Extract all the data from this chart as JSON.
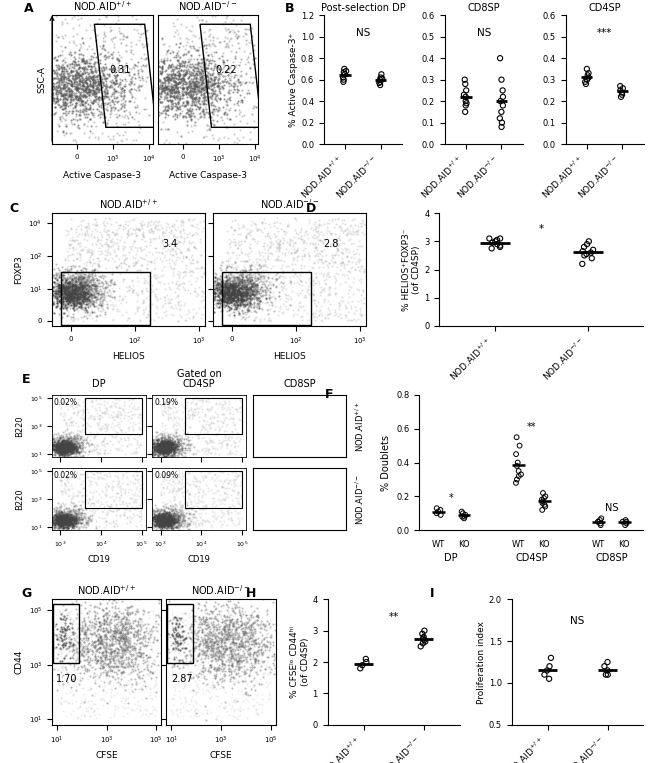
{
  "B_data": {
    "title_DP": "Post-selection DP",
    "title_CD8SP": "CD8SP",
    "title_CD4SP": "CD4SP",
    "ylabel": "% Active Caspase-3⁺",
    "sig_DP": "NS",
    "sig_CD8SP": "NS",
    "sig_CD4SP": "***",
    "ylim_DP": [
      0,
      1.2
    ],
    "yticks_DP": [
      0,
      0.2,
      0.4,
      0.6,
      0.8,
      1.0,
      1.2
    ],
    "ylim_CD8SP": [
      0,
      0.6
    ],
    "yticks_CD8SP": [
      0,
      0.1,
      0.2,
      0.3,
      0.4,
      0.5,
      0.6
    ],
    "ylim_CD4SP": [
      0,
      0.6
    ],
    "yticks_CD4SP": [
      0,
      0.1,
      0.2,
      0.3,
      0.4,
      0.5,
      0.6
    ],
    "DP_wt": [
      0.65,
      0.68,
      0.62,
      0.7,
      0.6,
      0.58,
      0.67
    ],
    "DP_ko": [
      0.6,
      0.55,
      0.62,
      0.58,
      0.65,
      0.57,
      0.61
    ],
    "DP_wt_mean": 0.643,
    "DP_ko_mean": 0.597,
    "CD8SP_wt": [
      0.2,
      0.23,
      0.25,
      0.18,
      0.22,
      0.28,
      0.3,
      0.19,
      0.15
    ],
    "CD8SP_ko": [
      0.2,
      0.1,
      0.08,
      0.12,
      0.3,
      0.4,
      0.25,
      0.22,
      0.15,
      0.18
    ],
    "CD8SP_wt_mean": 0.22,
    "CD8SP_ko_mean": 0.2,
    "CD4SP_wt": [
      0.3,
      0.32,
      0.28,
      0.35,
      0.33,
      0.31,
      0.29
    ],
    "CD4SP_ko": [
      0.22,
      0.25,
      0.24,
      0.27,
      0.23,
      0.26
    ],
    "CD4SP_wt_mean": 0.311,
    "CD4SP_ko_mean": 0.245
  },
  "D_data": {
    "ylabel": "% HELIOS⁺FOXP3⁻\n(of CD4SP)",
    "sig": "*",
    "ylim": [
      0,
      4
    ],
    "yticks": [
      0,
      1,
      2,
      3,
      4
    ],
    "wt": [
      2.8,
      3.0,
      3.1,
      2.9,
      3.05,
      2.75,
      2.85,
      3.1,
      2.95
    ],
    "ko": [
      2.9,
      2.6,
      2.5,
      2.4,
      2.7,
      2.8,
      3.0,
      2.2,
      2.55,
      2.65
    ],
    "wt_mean": 2.95,
    "ko_mean": 2.63
  },
  "F_data": {
    "ylabel": "% Doublets",
    "sig_DP": "*",
    "sig_CD4SP": "**",
    "sig_CD8SP": "NS",
    "ylim": [
      0,
      0.8
    ],
    "yticks": [
      0,
      0.2,
      0.4,
      0.6,
      0.8
    ],
    "DP_wt": [
      0.1,
      0.12,
      0.13,
      0.09,
      0.11
    ],
    "DP_ko": [
      0.08,
      0.09,
      0.07,
      0.1,
      0.08,
      0.11
    ],
    "DP_wt_mean": 0.11,
    "DP_ko_mean": 0.088,
    "CD4SP_wt": [
      0.3,
      0.35,
      0.32,
      0.28,
      0.4,
      0.38,
      0.5,
      0.55,
      0.45,
      0.33
    ],
    "CD4SP_ko": [
      0.15,
      0.18,
      0.2,
      0.12,
      0.17,
      0.22,
      0.14,
      0.19,
      0.16
    ],
    "CD4SP_wt_mean": 0.386,
    "CD4SP_ko_mean": 0.17,
    "CD8SP_wt": [
      0.05,
      0.04,
      0.06,
      0.03,
      0.05,
      0.07
    ],
    "CD8SP_ko": [
      0.04,
      0.05,
      0.06,
      0.03,
      0.05
    ],
    "CD8SP_wt_mean": 0.05,
    "CD8SP_ko_mean": 0.046
  },
  "H_data": {
    "ylabel": "% CFSEᴵᵒ CD44ʰⁱ\n(of CD4SP)",
    "sig": "**",
    "ylim": [
      0,
      4
    ],
    "yticks": [
      0,
      1,
      2,
      3,
      4
    ],
    "wt": [
      2.0,
      1.9,
      2.1,
      1.8
    ],
    "ko": [
      2.5,
      2.7,
      2.8,
      2.6,
      2.9,
      3.0,
      2.75,
      2.65
    ],
    "wt_mean": 1.95,
    "ko_mean": 2.74
  },
  "I_data": {
    "ylabel": "Proliferation index",
    "sig": "NS",
    "ylim": [
      0.5,
      2.0
    ],
    "yticks": [
      0.5,
      1.0,
      1.5,
      2.0
    ],
    "wt": [
      1.1,
      1.2,
      1.15,
      1.05,
      1.3
    ],
    "ko": [
      1.1,
      1.15,
      1.2,
      1.1,
      1.25
    ],
    "wt_mean": 1.16,
    "ko_mean": 1.16
  }
}
